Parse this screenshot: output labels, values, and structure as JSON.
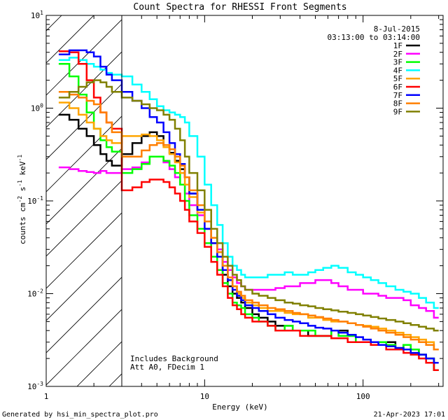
{
  "chart_data": {
    "type": "line",
    "title": "Count Spectra for RHESSI Front Segments",
    "xlabel": "Energy (keV)",
    "ylabel_parts": {
      "base": "counts cm",
      "exp1": "-2",
      "mid": " s",
      "exp2": "-1",
      "tail": " keV",
      "exp3": "-1"
    },
    "xscale": "log",
    "yscale": "log",
    "xlim": [
      1,
      320
    ],
    "ylim": [
      0.001,
      10
    ],
    "x_ticks": [
      {
        "value": 1,
        "label": "1"
      },
      {
        "value": 10,
        "label": "10"
      },
      {
        "value": 100,
        "label": "100"
      }
    ],
    "y_ticks": [
      {
        "value": 10,
        "base": "10",
        "exp": "1"
      },
      {
        "value": 1,
        "base": "10",
        "exp": "0"
      },
      {
        "value": 0.1,
        "base": "10",
        "exp": "-1"
      },
      {
        "value": 0.01,
        "base": "10",
        "exp": "-2"
      },
      {
        "value": 0.001,
        "base": "10",
        "exp": "-3"
      }
    ],
    "threshold_energy": 3,
    "date": "8-Jul-2015",
    "time_range": "03:13:00 to 03:14:00",
    "annotation_lines": [
      "Includes Background",
      "Att A0, FDecim 1"
    ],
    "footer_left": "Generated by hsi_min_spectra_plot.pro",
    "footer_right": "21-Apr-2023 17:01",
    "edges": [
      1.2,
      1.4,
      1.6,
      1.8,
      2.0,
      2.2,
      2.4,
      2.6,
      3.0,
      3.5,
      4.0,
      4.5,
      5.0,
      5.5,
      6.0,
      6.5,
      7.0,
      7.5,
      8.0,
      9.0,
      10,
      11,
      12,
      13,
      14,
      15,
      16,
      17,
      18,
      20,
      22,
      25,
      28,
      32,
      36,
      40,
      45,
      50,
      56,
      63,
      70,
      80,
      90,
      100,
      112,
      125,
      140,
      160,
      180,
      200,
      225,
      250,
      280,
      300
    ],
    "series": [
      {
        "name": "1F",
        "color": "#000000",
        "values": [
          0.85,
          0.75,
          0.6,
          0.5,
          0.4,
          0.32,
          0.27,
          0.24,
          0.32,
          0.42,
          0.5,
          0.55,
          0.5,
          0.4,
          0.33,
          0.27,
          0.22,
          0.18,
          0.12,
          0.08,
          0.05,
          0.035,
          0.025,
          0.016,
          0.012,
          0.01,
          0.009,
          0.008,
          0.007,
          0.006,
          0.0055,
          0.005,
          0.0045,
          0.0045,
          0.004,
          0.004,
          0.0035,
          0.0035,
          0.0035,
          0.004,
          0.004,
          0.0035,
          0.003,
          0.003,
          0.0028,
          0.003,
          0.003,
          0.0025,
          0.0028,
          0.0025,
          0.0022,
          0.002,
          0.0015
        ]
      },
      {
        "name": "2F",
        "color": "#ff00ff",
        "values": [
          0.23,
          0.22,
          0.21,
          0.205,
          0.2,
          0.21,
          0.2,
          0.2,
          0.22,
          0.23,
          0.26,
          0.3,
          0.3,
          0.26,
          0.22,
          0.18,
          0.15,
          0.12,
          0.09,
          0.07,
          0.05,
          0.04,
          0.03,
          0.022,
          0.018,
          0.015,
          0.013,
          0.012,
          0.011,
          0.011,
          0.011,
          0.011,
          0.0115,
          0.012,
          0.012,
          0.013,
          0.013,
          0.014,
          0.014,
          0.013,
          0.012,
          0.011,
          0.011,
          0.01,
          0.01,
          0.0095,
          0.009,
          0.009,
          0.0085,
          0.0075,
          0.007,
          0.0065,
          0.0055
        ]
      },
      {
        "name": "3F",
        "color": "#00ff00",
        "values": [
          3.0,
          2.2,
          1.4,
          0.9,
          0.6,
          0.45,
          0.38,
          0.34,
          0.2,
          0.22,
          0.25,
          0.3,
          0.3,
          0.27,
          0.24,
          0.2,
          0.15,
          0.1,
          0.07,
          0.05,
          0.035,
          0.025,
          0.018,
          0.013,
          0.01,
          0.008,
          0.0075,
          0.007,
          0.006,
          0.0055,
          0.005,
          0.0045,
          0.004,
          0.0045,
          0.004,
          0.004,
          0.004,
          0.0035,
          0.0035,
          0.004,
          0.0035,
          0.0035,
          0.003,
          0.003,
          0.003,
          0.003,
          0.0028,
          0.0025,
          0.0028,
          0.0025,
          0.0022,
          0.002,
          0.0015
        ]
      },
      {
        "name": "4F",
        "color": "#00ffff",
        "values": [
          3.3,
          3.5,
          3.3,
          3.0,
          2.8,
          2.6,
          2.4,
          2.3,
          2.2,
          1.8,
          1.5,
          1.25,
          1.05,
          0.95,
          0.9,
          0.85,
          0.8,
          0.7,
          0.5,
          0.3,
          0.15,
          0.09,
          0.055,
          0.035,
          0.025,
          0.02,
          0.018,
          0.016,
          0.015,
          0.015,
          0.015,
          0.016,
          0.016,
          0.017,
          0.016,
          0.016,
          0.017,
          0.018,
          0.019,
          0.02,
          0.019,
          0.017,
          0.016,
          0.015,
          0.014,
          0.013,
          0.012,
          0.011,
          0.0105,
          0.01,
          0.009,
          0.008,
          0.007
        ]
      },
      {
        "name": "5F",
        "color": "#ffa500",
        "values": [
          1.15,
          1.0,
          0.85,
          0.7,
          0.6,
          0.5,
          0.45,
          0.42,
          0.5,
          0.5,
          0.52,
          0.5,
          0.45,
          0.38,
          0.32,
          0.26,
          0.2,
          0.15,
          0.11,
          0.075,
          0.05,
          0.035,
          0.025,
          0.018,
          0.014,
          0.012,
          0.01,
          0.009,
          0.008,
          0.0075,
          0.007,
          0.0065,
          0.0065,
          0.0062,
          0.006,
          0.006,
          0.0055,
          0.0055,
          0.0052,
          0.005,
          0.005,
          0.0048,
          0.0046,
          0.0045,
          0.0044,
          0.0042,
          0.004,
          0.0038,
          0.0036,
          0.0034,
          0.0032,
          0.003,
          0.0025
        ]
      },
      {
        "name": "6F",
        "color": "#ff0000",
        "values": [
          4.1,
          4.0,
          3.0,
          2.0,
          1.3,
          0.9,
          0.7,
          0.6,
          0.13,
          0.14,
          0.16,
          0.17,
          0.17,
          0.16,
          0.14,
          0.12,
          0.1,
          0.08,
          0.06,
          0.045,
          0.032,
          0.022,
          0.016,
          0.012,
          0.009,
          0.0075,
          0.0068,
          0.006,
          0.0055,
          0.005,
          0.005,
          0.0045,
          0.004,
          0.004,
          0.004,
          0.0035,
          0.0035,
          0.0035,
          0.0035,
          0.0033,
          0.0033,
          0.003,
          0.003,
          0.003,
          0.0028,
          0.0028,
          0.0025,
          0.0025,
          0.0023,
          0.0022,
          0.002,
          0.0018,
          0.0015
        ]
      },
      {
        "name": "7F",
        "color": "#0000ff",
        "values": [
          3.8,
          4.2,
          4.2,
          4.0,
          3.6,
          2.8,
          2.3,
          2.0,
          1.5,
          1.2,
          1.0,
          0.8,
          0.7,
          0.55,
          0.42,
          0.32,
          0.25,
          0.18,
          0.12,
          0.08,
          0.05,
          0.035,
          0.025,
          0.018,
          0.014,
          0.011,
          0.0095,
          0.0085,
          0.0075,
          0.007,
          0.0065,
          0.006,
          0.0055,
          0.0052,
          0.005,
          0.0048,
          0.0045,
          0.0043,
          0.0042,
          0.004,
          0.0038,
          0.0036,
          0.0034,
          0.0032,
          0.003,
          0.0028,
          0.0027,
          0.0026,
          0.0025,
          0.0023,
          0.0022,
          0.002,
          0.0018
        ]
      },
      {
        "name": "8F",
        "color": "#ff7f00",
        "values": [
          1.5,
          1.4,
          1.3,
          1.2,
          1.1,
          0.9,
          0.7,
          0.55,
          0.3,
          0.3,
          0.35,
          0.4,
          0.42,
          0.4,
          0.36,
          0.3,
          0.24,
          0.18,
          0.13,
          0.09,
          0.06,
          0.04,
          0.028,
          0.02,
          0.015,
          0.012,
          0.0105,
          0.0095,
          0.0085,
          0.008,
          0.0075,
          0.007,
          0.0068,
          0.0065,
          0.0062,
          0.006,
          0.0058,
          0.0056,
          0.0054,
          0.0052,
          0.005,
          0.0048,
          0.0046,
          0.0044,
          0.0042,
          0.004,
          0.0038,
          0.0036,
          0.0034,
          0.0032,
          0.003,
          0.0028,
          0.0025
        ]
      },
      {
        "name": "9F",
        "color": "#808000",
        "values": [
          1.3,
          1.5,
          1.7,
          1.9,
          2.0,
          1.9,
          1.7,
          1.5,
          1.3,
          1.2,
          1.1,
          1.0,
          0.95,
          0.85,
          0.75,
          0.6,
          0.45,
          0.3,
          0.2,
          0.13,
          0.08,
          0.05,
          0.035,
          0.025,
          0.02,
          0.016,
          0.014,
          0.012,
          0.011,
          0.01,
          0.0095,
          0.009,
          0.0085,
          0.008,
          0.0078,
          0.0075,
          0.0073,
          0.007,
          0.0068,
          0.0066,
          0.0064,
          0.0062,
          0.006,
          0.0058,
          0.0056,
          0.0054,
          0.0052,
          0.005,
          0.0048,
          0.0046,
          0.0044,
          0.0042,
          0.004
        ]
      }
    ]
  }
}
